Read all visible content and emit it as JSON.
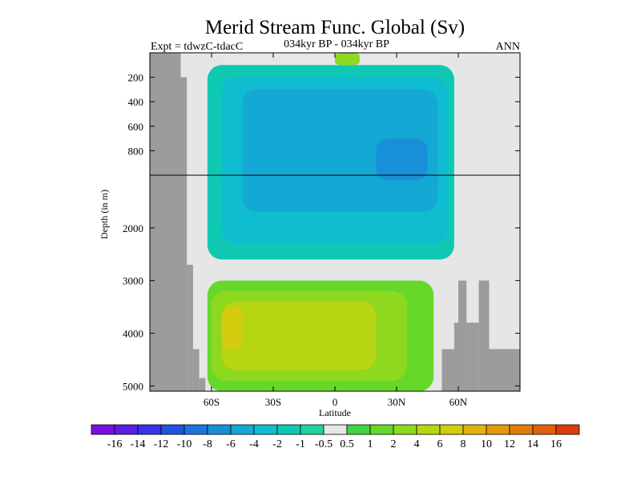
{
  "chart_data": {
    "type": "heatmap",
    "title": "Merid Stream Func. Global (Sv)",
    "subtitle_left": "Expt = tdwzC-tdacC",
    "subtitle_center": "034kyr BP - 034kyr BP",
    "subtitle_right": "ANN",
    "xlabel": "Latitude",
    "ylabel": "Depth (in m)",
    "x_ticks": [
      {
        "v": -60,
        "label": "60S"
      },
      {
        "v": -30,
        "label": "30S"
      },
      {
        "v": 0,
        "label": "0"
      },
      {
        "v": 30,
        "label": "30N"
      },
      {
        "v": 60,
        "label": "60N"
      }
    ],
    "xlim": [
      -90,
      90
    ],
    "y_upper_ticks": [
      {
        "v": 200,
        "label": "200"
      },
      {
        "v": 400,
        "label": "400"
      },
      {
        "v": 600,
        "label": "600"
      },
      {
        "v": 800,
        "label": "800"
      }
    ],
    "y_lower_ticks": [
      {
        "v": 2000,
        "label": "2000"
      },
      {
        "v": 3000,
        "label": "3000"
      },
      {
        "v": 4000,
        "label": "4000"
      },
      {
        "v": 5000,
        "label": "5000"
      }
    ],
    "y_break": 1000,
    "ylim": [
      0,
      5100
    ],
    "legend_levels": [
      "-16",
      "-14",
      "-12",
      "-10",
      "-8",
      "-6",
      "-4",
      "-2",
      "-1",
      "-0.5",
      "0.5",
      "1",
      "2",
      "4",
      "6",
      "8",
      "10",
      "12",
      "14",
      "16"
    ],
    "legend_colors": [
      "#7a10e0",
      "#5a1ee4",
      "#3a32e6",
      "#2253e0",
      "#1a76dc",
      "#1890d8",
      "#14a8d4",
      "#10bcd0",
      "#0fc8b4",
      "#20d2a0",
      "#e6e6e6",
      "#3ed640",
      "#66d82a",
      "#8ed820",
      "#b6d614",
      "#d4cc0e",
      "#e0b40c",
      "#e09a0c",
      "#e07e0c",
      "#e0600c",
      "#dc3c0c"
    ],
    "regions": [
      {
        "name": "upper-cell-outer",
        "level": "-1",
        "lat": [
          -62,
          58
        ],
        "depth": [
          100,
          2600
        ]
      },
      {
        "name": "upper-cell-main",
        "level": "-2",
        "lat": [
          -55,
          55
        ],
        "depth": [
          200,
          2300
        ]
      },
      {
        "name": "upper-cell-core",
        "level": "-4",
        "lat": [
          -45,
          50
        ],
        "depth": [
          300,
          1700
        ]
      },
      {
        "name": "upper-cell-peak",
        "level": "-6",
        "lat": [
          20,
          45
        ],
        "depth": [
          700,
          1100
        ]
      },
      {
        "name": "deep-cell-outer",
        "level": "1",
        "lat": [
          -62,
          48
        ],
        "depth": [
          3000,
          5100
        ]
      },
      {
        "name": "deep-cell-main",
        "level": "2",
        "lat": [
          -60,
          35
        ],
        "depth": [
          3200,
          4900
        ]
      },
      {
        "name": "deep-cell-core",
        "level": "4",
        "lat": [
          -55,
          20
        ],
        "depth": [
          3400,
          4700
        ]
      },
      {
        "name": "deep-cell-peak",
        "level": "6",
        "lat": [
          -55,
          -45
        ],
        "depth": [
          3500,
          4300
        ]
      },
      {
        "name": "surface-cell",
        "level": "2",
        "lat": [
          0,
          12
        ],
        "depth": [
          0,
          100
        ]
      }
    ]
  }
}
